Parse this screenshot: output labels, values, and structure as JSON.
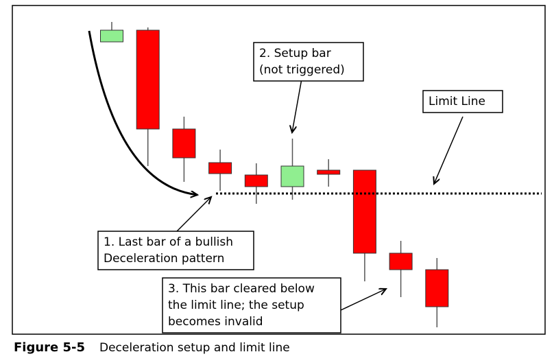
{
  "chart_data": {
    "type": "candlestick",
    "ylim": [
      0,
      479
    ],
    "up_color": "#90ee90",
    "down_color": "#ff0000",
    "series": {
      "open": [
        426,
        443,
        299,
        250,
        232,
        215,
        239,
        239,
        118,
        94
      ],
      "high": [
        455,
        447,
        317,
        269,
        249,
        285,
        255,
        239,
        136,
        111
      ],
      "low": [
        426,
        245,
        222,
        209,
        190,
        196,
        215,
        77,
        54,
        10
      ],
      "close": [
        443,
        299,
        257,
        234,
        215,
        245,
        233,
        118,
        94,
        40
      ]
    },
    "limit_line": 205,
    "annotations": [
      {
        "lines": [
          "2. Setup bar",
          "(not triggered)"
        ]
      },
      {
        "lines": [
          "Limit Line"
        ]
      },
      {
        "lines": [
          "1. Last bar of a bullish",
          "Deceleration pattern"
        ]
      },
      {
        "lines": [
          "3. This bar cleared below",
          "the limit line; the setup",
          "becomes invalid"
        ]
      }
    ]
  },
  "caption": {
    "label": "Figure 5-5",
    "text": "Deceleration setup and limit line"
  }
}
